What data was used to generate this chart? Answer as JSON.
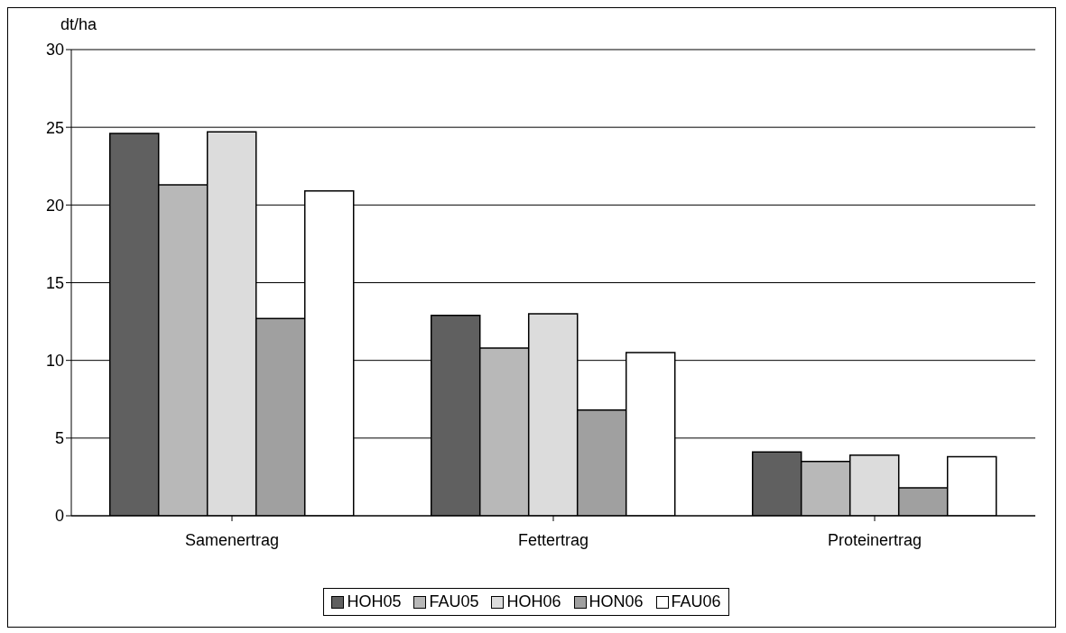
{
  "chart_data": {
    "type": "bar",
    "ylabel": "dt/ha",
    "categories": [
      "Samenertrag",
      "Fettertrag",
      "Proteinertrag"
    ],
    "series": [
      {
        "name": "HOH05",
        "color": "#606060",
        "values": [
          24.6,
          12.9,
          4.1
        ]
      },
      {
        "name": "FAU05",
        "color": "#b8b8b8",
        "values": [
          21.3,
          10.8,
          3.5
        ]
      },
      {
        "name": "HOH06",
        "color": "#dcdcdc",
        "values": [
          24.7,
          13.0,
          3.9
        ]
      },
      {
        "name": "HON06",
        "color": "#a0a0a0",
        "values": [
          12.7,
          6.8,
          1.8
        ]
      },
      {
        "name": "FAU06",
        "color": "#ffffff",
        "values": [
          20.9,
          10.5,
          3.8
        ]
      }
    ],
    "ylim": [
      0,
      30
    ],
    "yticks": [
      0,
      5,
      10,
      15,
      20,
      25,
      30
    ],
    "grid": "y",
    "legend": "bottom"
  }
}
